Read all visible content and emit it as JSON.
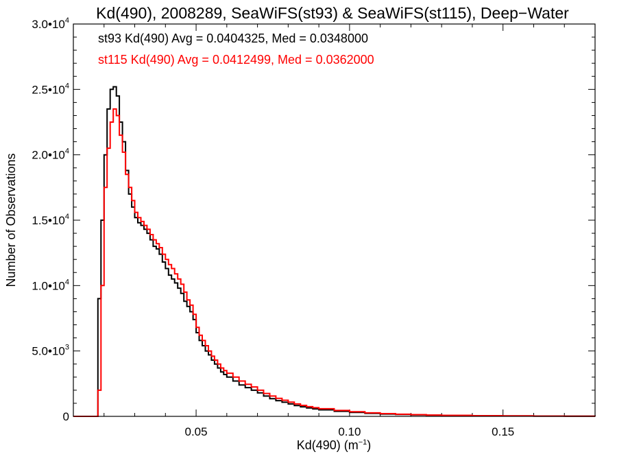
{
  "chart_data": {
    "type": "line",
    "title": "Kd(490), 2008289, SeaWiFS(st93) & SeaWiFS(st115), Deep−Water",
    "xlabel": {
      "main": "Kd(490) (m",
      "sup": "−1",
      "close": ")"
    },
    "ylabel": "Number of Observations",
    "xlim": [
      0.01,
      0.18
    ],
    "ylim": [
      0,
      30000
    ],
    "x_ticks": [
      {
        "value": 0.05,
        "label": "0.05"
      },
      {
        "value": 0.1,
        "label": "0.10"
      },
      {
        "value": 0.15,
        "label": "0.15"
      }
    ],
    "y_ticks": [
      {
        "value": 0,
        "mant": "0",
        "exp": ""
      },
      {
        "value": 5000,
        "mant": "5.0•10",
        "exp": "3"
      },
      {
        "value": 10000,
        "mant": "1.0•10",
        "exp": "4"
      },
      {
        "value": 15000,
        "mant": "1.5•10",
        "exp": "4"
      },
      {
        "value": 20000,
        "mant": "2.0•10",
        "exp": "4"
      },
      {
        "value": 25000,
        "mant": "2.5•10",
        "exp": "4"
      },
      {
        "value": 30000,
        "mant": "3.0•10",
        "exp": "4"
      }
    ],
    "annotations": [
      {
        "text": "st93 Kd(490) Avg = 0.0404325, Med = 0.0348000",
        "color": "#000000"
      },
      {
        "text": "st115 Kd(490) Avg = 0.0412499, Med = 0.0362000",
        "color": "#ff0000"
      }
    ],
    "series": [
      {
        "key": "st93",
        "color": "#000000",
        "x": [
          0.01,
          0.017,
          0.018,
          0.019,
          0.02,
          0.021,
          0.022,
          0.023,
          0.024,
          0.025,
          0.026,
          0.027,
          0.028,
          0.029,
          0.03,
          0.031,
          0.032,
          0.033,
          0.034,
          0.035,
          0.036,
          0.037,
          0.038,
          0.039,
          0.04,
          0.041,
          0.042,
          0.043,
          0.044,
          0.045,
          0.046,
          0.047,
          0.048,
          0.049,
          0.05,
          0.051,
          0.052,
          0.053,
          0.054,
          0.055,
          0.056,
          0.057,
          0.058,
          0.059,
          0.06,
          0.062,
          0.064,
          0.066,
          0.068,
          0.07,
          0.072,
          0.074,
          0.076,
          0.078,
          0.08,
          0.082,
          0.084,
          0.086,
          0.088,
          0.09,
          0.095,
          0.1,
          0.105,
          0.11,
          0.115,
          0.12,
          0.125,
          0.13,
          0.14,
          0.15,
          0.16,
          0.17,
          0.18
        ],
        "y": [
          0,
          0,
          9000,
          15000,
          20000,
          23500,
          25000,
          25200,
          24500,
          22500,
          21000,
          18800,
          17000,
          16000,
          15200,
          14800,
          14600,
          14300,
          14000,
          13500,
          13000,
          12800,
          12400,
          11800,
          11300,
          10800,
          10500,
          10200,
          9800,
          9400,
          8800,
          8400,
          8000,
          7400,
          6400,
          5800,
          5400,
          5000,
          4700,
          4300,
          4000,
          3700,
          3400,
          3200,
          3000,
          2700,
          2400,
          2200,
          2000,
          1800,
          1550,
          1350,
          1200,
          1080,
          950,
          830,
          730,
          640,
          570,
          500,
          390,
          300,
          230,
          180,
          140,
          110,
          90,
          70,
          45,
          30,
          20,
          10,
          5
        ]
      },
      {
        "key": "st115",
        "color": "#ff0000",
        "x": [
          0.01,
          0.017,
          0.018,
          0.019,
          0.02,
          0.021,
          0.022,
          0.023,
          0.024,
          0.025,
          0.026,
          0.027,
          0.028,
          0.029,
          0.03,
          0.031,
          0.032,
          0.033,
          0.034,
          0.035,
          0.036,
          0.037,
          0.038,
          0.039,
          0.04,
          0.041,
          0.042,
          0.043,
          0.044,
          0.045,
          0.046,
          0.047,
          0.048,
          0.049,
          0.05,
          0.051,
          0.052,
          0.053,
          0.054,
          0.055,
          0.056,
          0.057,
          0.058,
          0.059,
          0.06,
          0.062,
          0.064,
          0.066,
          0.068,
          0.07,
          0.072,
          0.074,
          0.076,
          0.078,
          0.08,
          0.082,
          0.084,
          0.086,
          0.088,
          0.09,
          0.095,
          0.1,
          0.105,
          0.11,
          0.115,
          0.12,
          0.125,
          0.13,
          0.14,
          0.15,
          0.16,
          0.17,
          0.18
        ],
        "y": [
          0,
          0,
          2000,
          10000,
          17500,
          20500,
          22500,
          23500,
          23000,
          21500,
          20200,
          18500,
          17500,
          16500,
          15600,
          15200,
          14900,
          14600,
          14300,
          13900,
          13500,
          13200,
          12900,
          12400,
          12000,
          11600,
          11300,
          10900,
          10500,
          10100,
          9500,
          8900,
          8500,
          7800,
          6800,
          6200,
          5800,
          5400,
          5000,
          4600,
          4300,
          4000,
          3700,
          3500,
          3300,
          3000,
          2700,
          2450,
          2250,
          2000,
          1750,
          1550,
          1380,
          1230,
          1090,
          950,
          840,
          740,
          660,
          580,
          450,
          350,
          270,
          210,
          165,
          130,
          100,
          80,
          55,
          35,
          22,
          12,
          6
        ]
      }
    ]
  }
}
